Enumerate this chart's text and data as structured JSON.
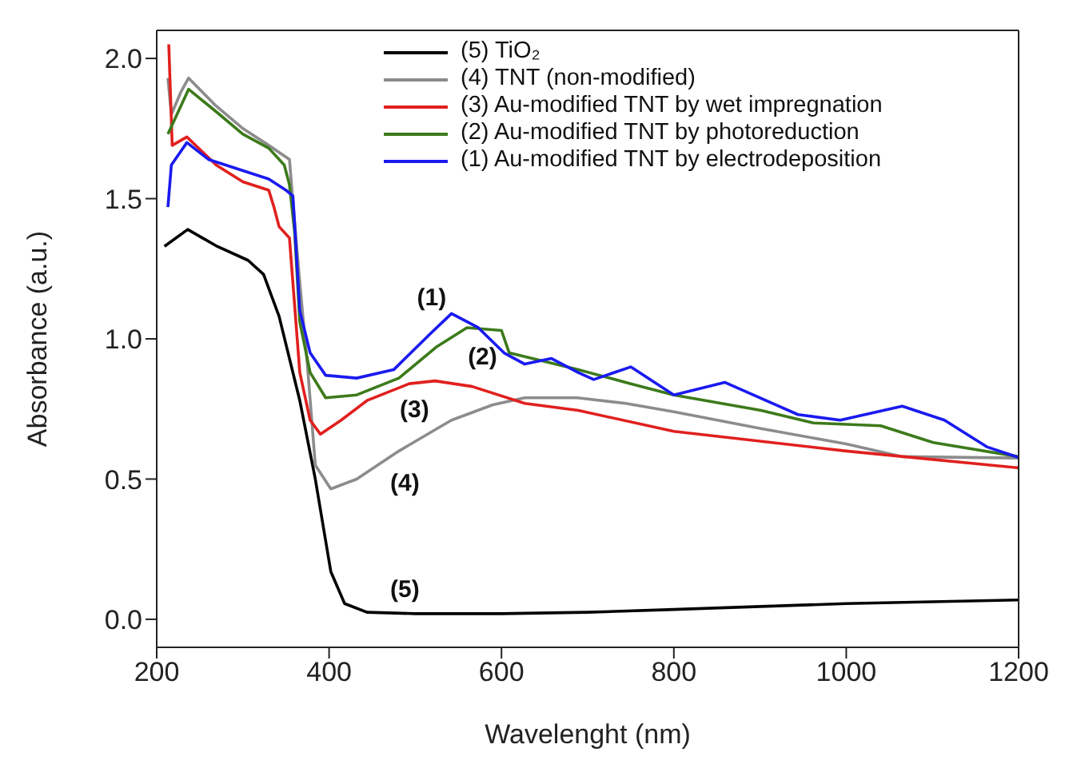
{
  "chart_data": {
    "type": "line",
    "xlabel": "Wavelenght (nm)",
    "ylabel": "Absorbance (a.u.)",
    "xlim": [
      200,
      1200
    ],
    "xticks": [
      200,
      400,
      600,
      800,
      1000,
      1200
    ],
    "ylim": [
      -0.1,
      2.1
    ],
    "yticks": [
      {
        "value": 0,
        "label": "0.0"
      },
      {
        "value": 0.5,
        "label": "0.5"
      },
      {
        "value": 1,
        "label": "1.0"
      },
      {
        "value": 1.5,
        "label": "1.5"
      },
      {
        "value": 2,
        "label": "2.0"
      }
    ],
    "grid": false,
    "legend": "top right",
    "marker": "none",
    "line_style": "solid",
    "series": [
      {
        "name": "(5) TiO₂",
        "color": "#000000",
        "x": [
          209,
          236,
          270,
          306,
          324,
          342,
          366,
          384,
          402,
          418,
          444,
          500,
          600,
          700,
          800,
          1000,
          1200
        ],
        "values": [
          1.33,
          1.39,
          1.33,
          1.28,
          1.23,
          1.08,
          0.78,
          0.5,
          0.17,
          0.056,
          0.025,
          0.02,
          0.02,
          0.025,
          0.035,
          0.056,
          0.069
        ]
      },
      {
        "name": "(4) TNT (non-modified)",
        "color": "#8c8c8c",
        "x": [
          213,
          217,
          228,
          237,
          269,
          300,
          330,
          354,
          358,
          366,
          375,
          384,
          402,
          432,
          481,
          542,
          590,
          627,
          688,
          744,
          800,
          901,
          1000,
          1065,
          1200
        ],
        "values": [
          1.93,
          1.8,
          1.88,
          1.93,
          1.83,
          1.75,
          1.69,
          1.64,
          1.49,
          1.2,
          0.9,
          0.55,
          0.465,
          0.5,
          0.6,
          0.71,
          0.765,
          0.79,
          0.79,
          0.77,
          0.74,
          0.68,
          0.625,
          0.58,
          0.575
        ]
      },
      {
        "name": "(3) Au-modified TNT by wet impregnation",
        "color": "#e0201e",
        "x": [
          214,
          218,
          235,
          269,
          300,
          330,
          336,
          342,
          354,
          366,
          378,
          390,
          414,
          444,
          493,
          523,
          566,
          627,
          689,
          800,
          1000,
          1200
        ],
        "values": [
          2.05,
          1.69,
          1.72,
          1.62,
          1.56,
          1.53,
          1.47,
          1.4,
          1.36,
          0.88,
          0.71,
          0.66,
          0.71,
          0.78,
          0.84,
          0.85,
          0.83,
          0.77,
          0.745,
          0.67,
          0.6,
          0.54
        ]
      },
      {
        "name": "(2) Au-modified TNT by photoreduction",
        "color": "#3c7a1a",
        "x": [
          213,
          237,
          269,
          300,
          330,
          348,
          354,
          360,
          366,
          378,
          396,
          432,
          481,
          524,
          560,
          600,
          609,
          689,
          750,
          800,
          901,
          962,
          1040,
          1101,
          1200
        ],
        "values": [
          1.73,
          1.89,
          1.81,
          1.73,
          1.68,
          1.62,
          1.55,
          1.38,
          1.06,
          0.88,
          0.79,
          0.8,
          0.86,
          0.97,
          1.04,
          1.03,
          0.95,
          0.89,
          0.84,
          0.8,
          0.745,
          0.7,
          0.69,
          0.63,
          0.58
        ]
      },
      {
        "name": "(1) Au-modified TNT by electrodeposition",
        "color": "#1a1af0",
        "x": [
          213,
          217,
          235,
          260,
          300,
          330,
          350,
          358,
          360,
          366,
          378,
          396,
          432,
          475,
          518,
          542,
          573,
          603,
          627,
          658,
          689,
          707,
          750,
          800,
          859,
          944,
          993,
          1065,
          1114,
          1163,
          1200
        ],
        "values": [
          1.47,
          1.62,
          1.7,
          1.64,
          1.6,
          1.57,
          1.53,
          1.51,
          1.41,
          1.1,
          0.95,
          0.87,
          0.86,
          0.89,
          1.02,
          1.09,
          1.04,
          0.95,
          0.91,
          0.93,
          0.88,
          0.855,
          0.9,
          0.8,
          0.845,
          0.73,
          0.71,
          0.76,
          0.71,
          0.615,
          0.577
        ]
      }
    ],
    "annotations": [
      "(1)",
      "(2)",
      "(3)",
      "(4)",
      "(5)"
    ]
  }
}
